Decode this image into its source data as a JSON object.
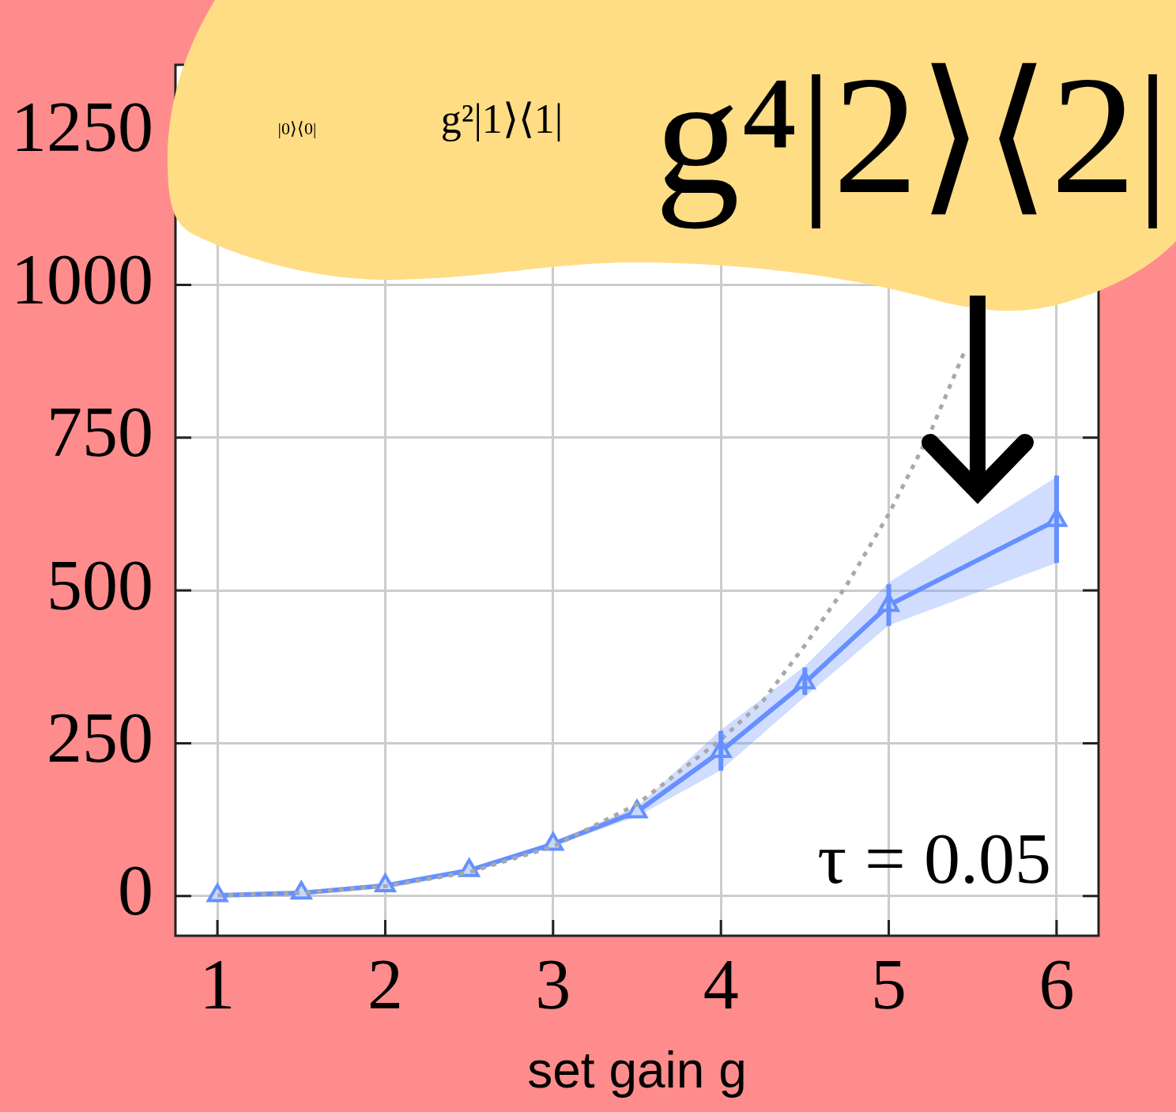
{
  "chart_data": {
    "type": "line",
    "xlabel": "set gain g",
    "xlim": [
      0.75,
      6.25
    ],
    "xticks": [
      1,
      2,
      3,
      4,
      5,
      6
    ],
    "ylim": [
      -65,
      1360
    ],
    "yticks": [
      0,
      250,
      500,
      750,
      1000,
      1250
    ],
    "grid": true,
    "series": [
      {
        "color": "#6690ff",
        "marker": "triangle",
        "line_style": "solid",
        "x": [
          1,
          1.5,
          2,
          2.5,
          3,
          3.5,
          4,
          4.5,
          5,
          6
        ],
        "values": [
          1,
          5,
          17,
          42,
          85,
          138,
          237,
          349,
          476,
          615
        ],
        "errors": [
          null,
          null,
          null,
          null,
          null,
          null,
          [
            205,
            270
          ],
          [
            329,
            374
          ],
          [
            442,
            510
          ],
          [
            545,
            688
          ]
        ],
        "lower": [
          0,
          4,
          15,
          39,
          82,
          130,
          206,
          326,
          443,
          545
        ],
        "upper": [
          2,
          6,
          19,
          45,
          89,
          146,
          272,
          376,
          513,
          686
        ]
      },
      {
        "color": "#a8a8a8",
        "marker": "none",
        "line_style": "dotted",
        "x": [
          1,
          1.5,
          2,
          2.5,
          3,
          3.5,
          4,
          4.25,
          4.5,
          4.75,
          5,
          5.25,
          5.45
        ],
        "values": [
          1,
          5,
          16,
          39,
          81,
          150,
          256,
          319,
          410,
          509,
          625,
          760,
          890
        ]
      }
    ],
    "annotations": [
      "|0⟩⟨0|",
      "g²|1⟩⟨1|",
      "g⁴|2⟩⟨2|",
      "τ = 0.05"
    ]
  }
}
